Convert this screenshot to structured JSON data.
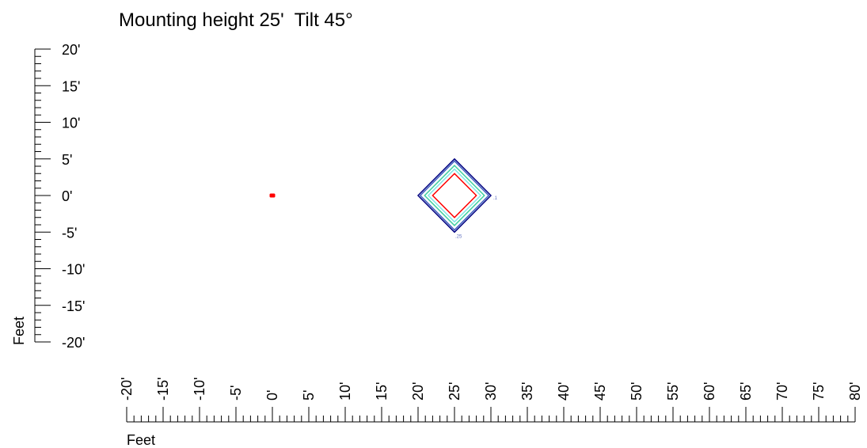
{
  "chart_data": {
    "type": "contour",
    "title": "Mounting height 25'  Tilt 45°",
    "xlabel": "Feet",
    "ylabel": "Feet",
    "xlim": [
      -20,
      80
    ],
    "ylim": [
      -20,
      20
    ],
    "x_ticks": [
      "-20'",
      "-15'",
      "-10'",
      "-5'",
      "0'",
      "5'",
      "10'",
      "15'",
      "20'",
      "25'",
      "30'",
      "35'",
      "40'",
      "45'",
      "50'",
      "55'",
      "60'",
      "65'",
      "70'",
      "75'",
      "80'"
    ],
    "x_tick_values": [
      -20,
      -15,
      -10,
      -5,
      0,
      5,
      10,
      15,
      20,
      25,
      30,
      35,
      40,
      45,
      50,
      55,
      60,
      65,
      70,
      75,
      80
    ],
    "y_ticks": [
      "20'",
      "15'",
      "10'",
      "5'",
      "0'",
      "-5'",
      "-10'",
      "-15'",
      "-20'"
    ],
    "y_tick_values": [
      20,
      15,
      10,
      5,
      0,
      -5,
      -10,
      -15,
      -20
    ],
    "luminaire": {
      "x": 0,
      "y": 0,
      "color": "#ff0000"
    },
    "contours": [
      {
        "center": [
          25,
          0
        ],
        "half_width": 5,
        "color": "#000080",
        "label": ".1"
      },
      {
        "center": [
          25,
          0
        ],
        "half_width": 4.7,
        "color": "#4060c0",
        "label": ".25"
      },
      {
        "center": [
          25,
          0
        ],
        "half_width": 4.1,
        "color": "#40d0a0",
        "label": ""
      },
      {
        "center": [
          25,
          0
        ],
        "half_width": 3.6,
        "color": "#80e8e8",
        "label": ""
      },
      {
        "center": [
          25,
          0
        ],
        "half_width": 3.0,
        "color": "#ff0000",
        "label": ""
      }
    ],
    "contour_label_color": "#6070c0"
  }
}
